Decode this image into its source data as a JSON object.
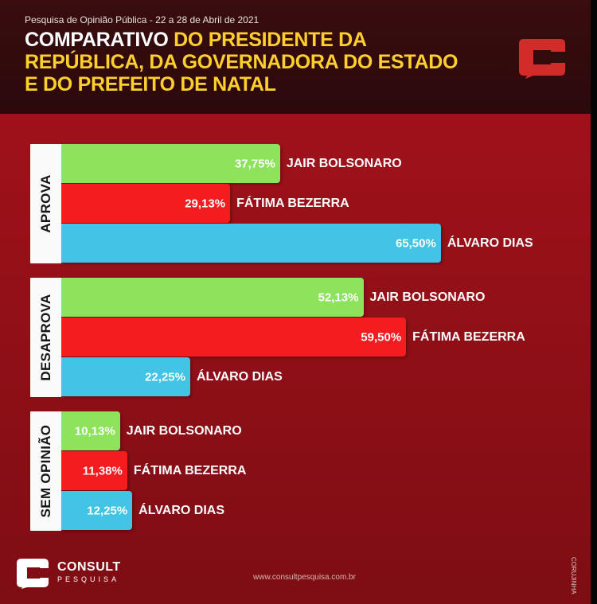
{
  "header": {
    "subtitle": "Pesquisa de Opinião Pública - 22 a 28 de Abril de 2021",
    "title_part1": "COMPARATIVO",
    "title_part2": " DO PRESIDENTE DA REPÚBLICA, DA GOVERNADORA DO ESTADO E DO PREFEITO DE NATAL"
  },
  "colors": {
    "jair_bolsonaro": "#8ee35d",
    "fatima_bezerra": "#f51c1f",
    "alvaro_dias": "#41c4e6",
    "accent_yellow": "#ffcf2e",
    "background_red": "#a8121c"
  },
  "chart_data": {
    "type": "bar",
    "orientation": "horizontal",
    "groups": [
      "APROVA",
      "DESAPROVA",
      "SEM OPINIÃO"
    ],
    "series": [
      {
        "name": "JAIR BOLSONARO",
        "values": [
          37.75,
          52.13,
          10.13
        ],
        "labels": [
          "37,75%",
          "52,13%",
          "10,13%"
        ]
      },
      {
        "name": "FÁTIMA BEZERRA",
        "values": [
          29.13,
          59.5,
          11.38
        ],
        "labels": [
          "29,13%",
          "59,50%",
          "11,38%"
        ]
      },
      {
        "name": "ÁLVARO DIAS",
        "values": [
          65.5,
          22.25,
          12.25
        ],
        "labels": [
          "65,50%",
          "22,25%",
          "12,25%"
        ]
      }
    ],
    "unit": "%"
  },
  "footer": {
    "brand_name": "CONSULT",
    "brand_sub": "PESQUISA",
    "website": "www.consultpesquisa.com.br",
    "credit": "CORUJINHA"
  }
}
